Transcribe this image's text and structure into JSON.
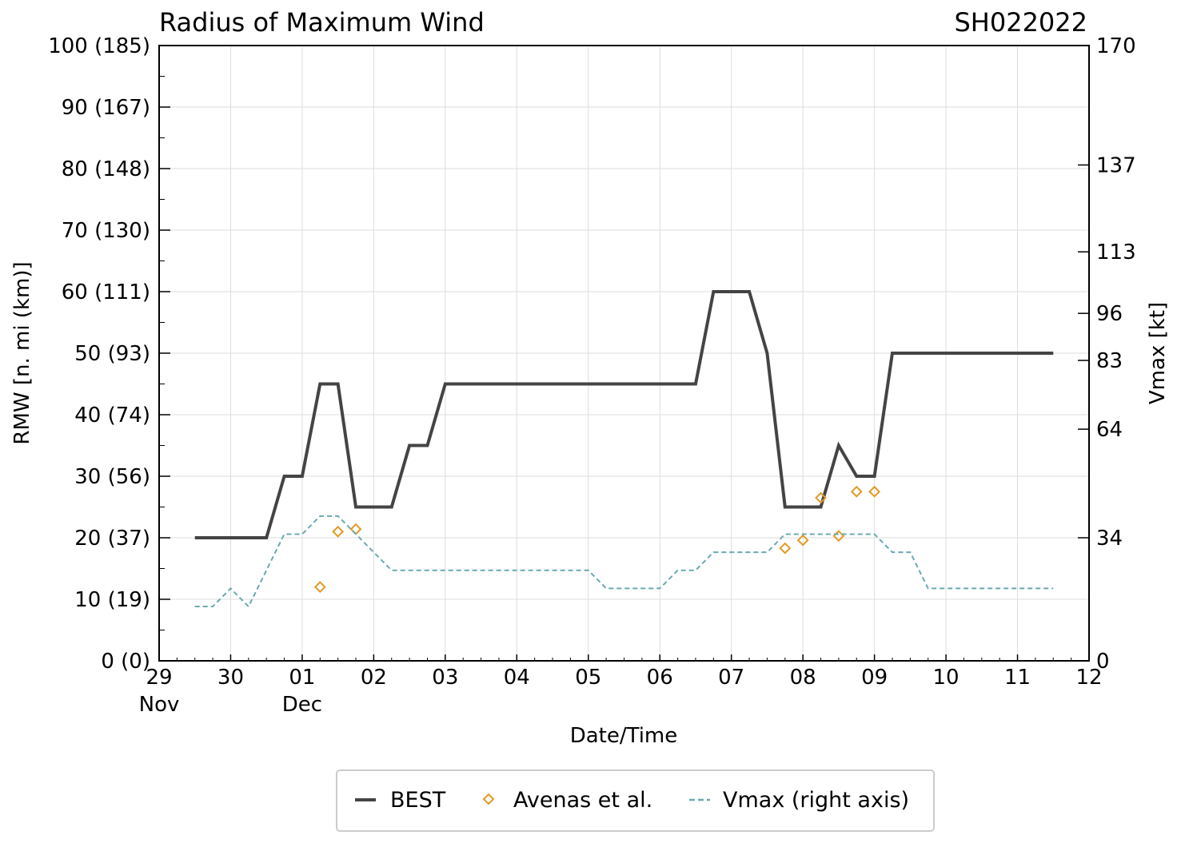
{
  "chart_data": {
    "type": "line",
    "title": "Radius of Maximum Wind",
    "storm_id": "SH022022",
    "xlabel": "Date/Time",
    "ylabel": "RMW [n. mi (km)]",
    "y2label": "Vmax [kt]",
    "x_range": [
      "2022-11-29 00:00",
      "2022-12-12 00:00"
    ],
    "ylim": [
      0,
      100
    ],
    "y2lim": [
      0,
      170
    ],
    "grid": true,
    "legend_position": "bottom-center",
    "x_ticks": [
      {
        "date": "2022-11-29",
        "label": "29",
        "sub": "Nov"
      },
      {
        "date": "2022-11-30",
        "label": "30",
        "sub": ""
      },
      {
        "date": "2022-12-01",
        "label": "01",
        "sub": "Dec"
      },
      {
        "date": "2022-12-02",
        "label": "02",
        "sub": ""
      },
      {
        "date": "2022-12-03",
        "label": "03",
        "sub": ""
      },
      {
        "date": "2022-12-04",
        "label": "04",
        "sub": ""
      },
      {
        "date": "2022-12-05",
        "label": "05",
        "sub": ""
      },
      {
        "date": "2022-12-06",
        "label": "06",
        "sub": ""
      },
      {
        "date": "2022-12-07",
        "label": "07",
        "sub": ""
      },
      {
        "date": "2022-12-08",
        "label": "08",
        "sub": ""
      },
      {
        "date": "2022-12-09",
        "label": "09",
        "sub": ""
      },
      {
        "date": "2022-12-10",
        "label": "10",
        "sub": ""
      },
      {
        "date": "2022-12-11",
        "label": "11",
        "sub": ""
      },
      {
        "date": "2022-12-12",
        "label": "12",
        "sub": ""
      }
    ],
    "y_ticks": [
      {
        "value": 0,
        "label": "0 (0)"
      },
      {
        "value": 10,
        "label": "10 (19)"
      },
      {
        "value": 20,
        "label": "20 (37)"
      },
      {
        "value": 30,
        "label": "30 (56)"
      },
      {
        "value": 40,
        "label": "40 (74)"
      },
      {
        "value": 50,
        "label": "50 (93)"
      },
      {
        "value": 60,
        "label": "60 (111)"
      },
      {
        "value": 70,
        "label": "70 (130)"
      },
      {
        "value": 80,
        "label": "80 (148)"
      },
      {
        "value": 90,
        "label": "90 (167)"
      },
      {
        "value": 100,
        "label": "100 (185)"
      }
    ],
    "y2_ticks": [
      {
        "value": 0,
        "label": "0"
      },
      {
        "value": 34,
        "label": "34"
      },
      {
        "value": 64,
        "label": "64"
      },
      {
        "value": 83,
        "label": "83"
      },
      {
        "value": 96,
        "label": "96"
      },
      {
        "value": 113,
        "label": "113"
      },
      {
        "value": 137,
        "label": "137"
      },
      {
        "value": 170,
        "label": "170"
      }
    ],
    "series": [
      {
        "name": "BEST",
        "axis": "left",
        "style": "solid",
        "color": "#444444",
        "x": [
          "2022-11-29 12:00",
          "2022-11-29 18:00",
          "2022-11-30 00:00",
          "2022-11-30 06:00",
          "2022-11-30 12:00",
          "2022-11-30 18:00",
          "2022-12-01 00:00",
          "2022-12-01 06:00",
          "2022-12-01 12:00",
          "2022-12-01 18:00",
          "2022-12-02 00:00",
          "2022-12-02 06:00",
          "2022-12-02 12:00",
          "2022-12-02 18:00",
          "2022-12-03 00:00",
          "2022-12-06 12:00",
          "2022-12-06 18:00",
          "2022-12-07 00:00",
          "2022-12-07 06:00",
          "2022-12-07 12:00",
          "2022-12-07 18:00",
          "2022-12-08 00:00",
          "2022-12-08 06:00",
          "2022-12-08 12:00",
          "2022-12-08 18:00",
          "2022-12-09 00:00",
          "2022-12-09 06:00",
          "2022-12-11 12:00"
        ],
        "values": [
          20,
          20,
          20,
          20,
          20,
          30,
          30,
          45,
          45,
          25,
          25,
          25,
          35,
          35,
          45,
          45,
          60,
          60,
          60,
          50,
          25,
          25,
          25,
          35,
          30,
          30,
          50,
          50
        ]
      },
      {
        "name": "Avenas et al.",
        "axis": "left",
        "style": "marker",
        "color": "#e39a22",
        "x": [
          "2022-12-01 06:00",
          "2022-12-01 12:00",
          "2022-12-01 18:00",
          "2022-12-07 18:00",
          "2022-12-08 00:00",
          "2022-12-08 06:00",
          "2022-12-08 12:00",
          "2022-12-08 18:00",
          "2022-12-09 00:00"
        ],
        "values": [
          12,
          21,
          21.4,
          18.3,
          19.6,
          26.5,
          20.3,
          27.5,
          27.5
        ]
      },
      {
        "name": "Vmax (right axis)",
        "axis": "right",
        "style": "dashed",
        "color": "#6aa9b2",
        "x": [
          "2022-11-29 12:00",
          "2022-11-29 18:00",
          "2022-11-30 00:00",
          "2022-11-30 06:00",
          "2022-11-30 12:00",
          "2022-11-30 18:00",
          "2022-12-01 00:00",
          "2022-12-01 06:00",
          "2022-12-01 12:00",
          "2022-12-01 18:00",
          "2022-12-02 00:00",
          "2022-12-02 06:00",
          "2022-12-05 00:00",
          "2022-12-05 06:00",
          "2022-12-06 00:00",
          "2022-12-06 06:00",
          "2022-12-06 12:00",
          "2022-12-06 18:00",
          "2022-12-07 12:00",
          "2022-12-07 18:00",
          "2022-12-09 00:00",
          "2022-12-09 06:00",
          "2022-12-09 12:00",
          "2022-12-09 18:00",
          "2022-12-11 12:00"
        ],
        "values": [
          15,
          15,
          20,
          15,
          25,
          35,
          35,
          40,
          40,
          35,
          30,
          25,
          25,
          20,
          20,
          25,
          25,
          30,
          30,
          35,
          35,
          30,
          30,
          20,
          20
        ]
      }
    ]
  }
}
